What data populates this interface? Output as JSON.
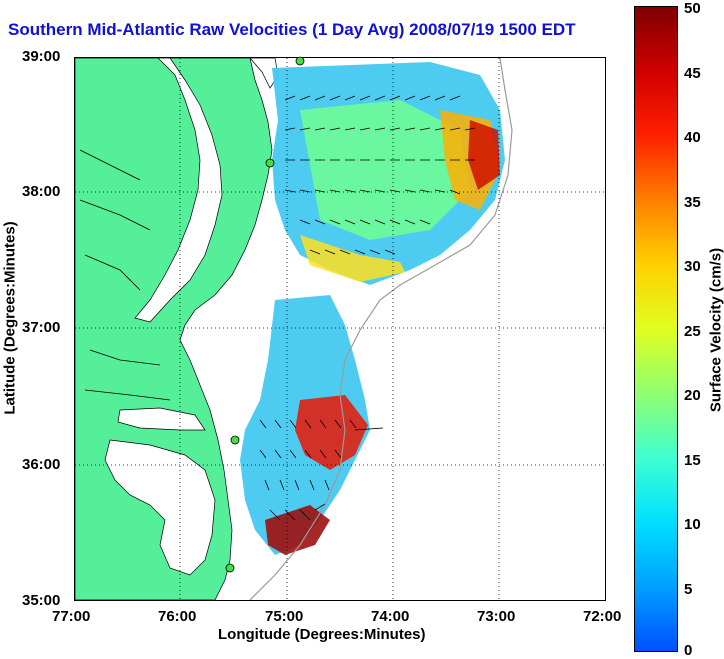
{
  "title": "Southern Mid-Atlantic Raw Velocities (1 Day Avg) 2008/07/19 1500 EDT",
  "map": {
    "xlabel": "Longitude (Degrees:Minutes)",
    "ylabel": "Latitude (Degrees:Minutes)",
    "xticks": [
      "77:00",
      "76:00",
      "75:00",
      "74:00",
      "73:00",
      "72:00"
    ],
    "yticks": [
      "39:00",
      "38:00",
      "37:00",
      "36:00",
      "35:00"
    ],
    "lon_range": [
      -77,
      -72
    ],
    "lat_range": [
      35,
      39
    ],
    "grid": "dotted",
    "land_color": "#55ee99",
    "stations": [
      "station-north",
      "station-mid",
      "station-south",
      "station-tip"
    ]
  },
  "colorbar": {
    "title": "Surface Velocity (cm/s)",
    "ticks": [
      "50",
      "45",
      "40",
      "35",
      "30",
      "25",
      "20",
      "15",
      "10",
      "5",
      "0"
    ],
    "range": [
      0,
      50
    ],
    "colors": [
      "#0050ff",
      "#00e0ff",
      "#90ff70",
      "#ffd000",
      "#ff2000",
      "#800000"
    ]
  }
}
